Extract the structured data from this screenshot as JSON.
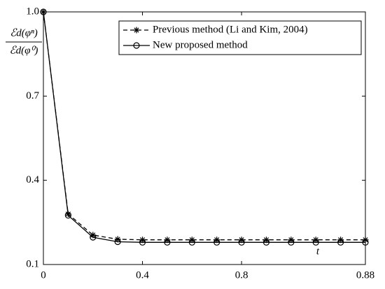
{
  "chart_data": {
    "type": "line",
    "ylabel": [
      "ℰd(φⁿ)",
      "ℰd(φ⁰)"
    ],
    "xlabel": "t",
    "categories": [
      "0",
      null,
      null,
      null,
      "0.4",
      null,
      null,
      null,
      "0.8",
      null,
      null,
      null,
      null,
      "0.88"
    ],
    "series": [
      {
        "name": "Previous method (Li and Kim, 2004)",
        "color": "#000000",
        "dash": true,
        "marker": "asterisk",
        "values": [
          1.0,
          0.28,
          0.205,
          0.19,
          0.188,
          0.188,
          0.188,
          0.188,
          0.188,
          0.188,
          0.188,
          0.188,
          0.188,
          0.188
        ]
      },
      {
        "name": "New proposed method",
        "color": "#000000",
        "dash": false,
        "marker": "circle",
        "values": [
          1.0,
          0.275,
          0.197,
          0.181,
          0.179,
          0.179,
          0.179,
          0.179,
          0.179,
          0.179,
          0.179,
          0.179,
          0.179,
          0.179
        ]
      }
    ],
    "ylim": [
      0.1,
      1.0
    ],
    "yticks": [
      0.1,
      0.4,
      0.7,
      {
        "value": 1.0,
        "label": "1.0"
      }
    ],
    "legend": "upper-right"
  }
}
